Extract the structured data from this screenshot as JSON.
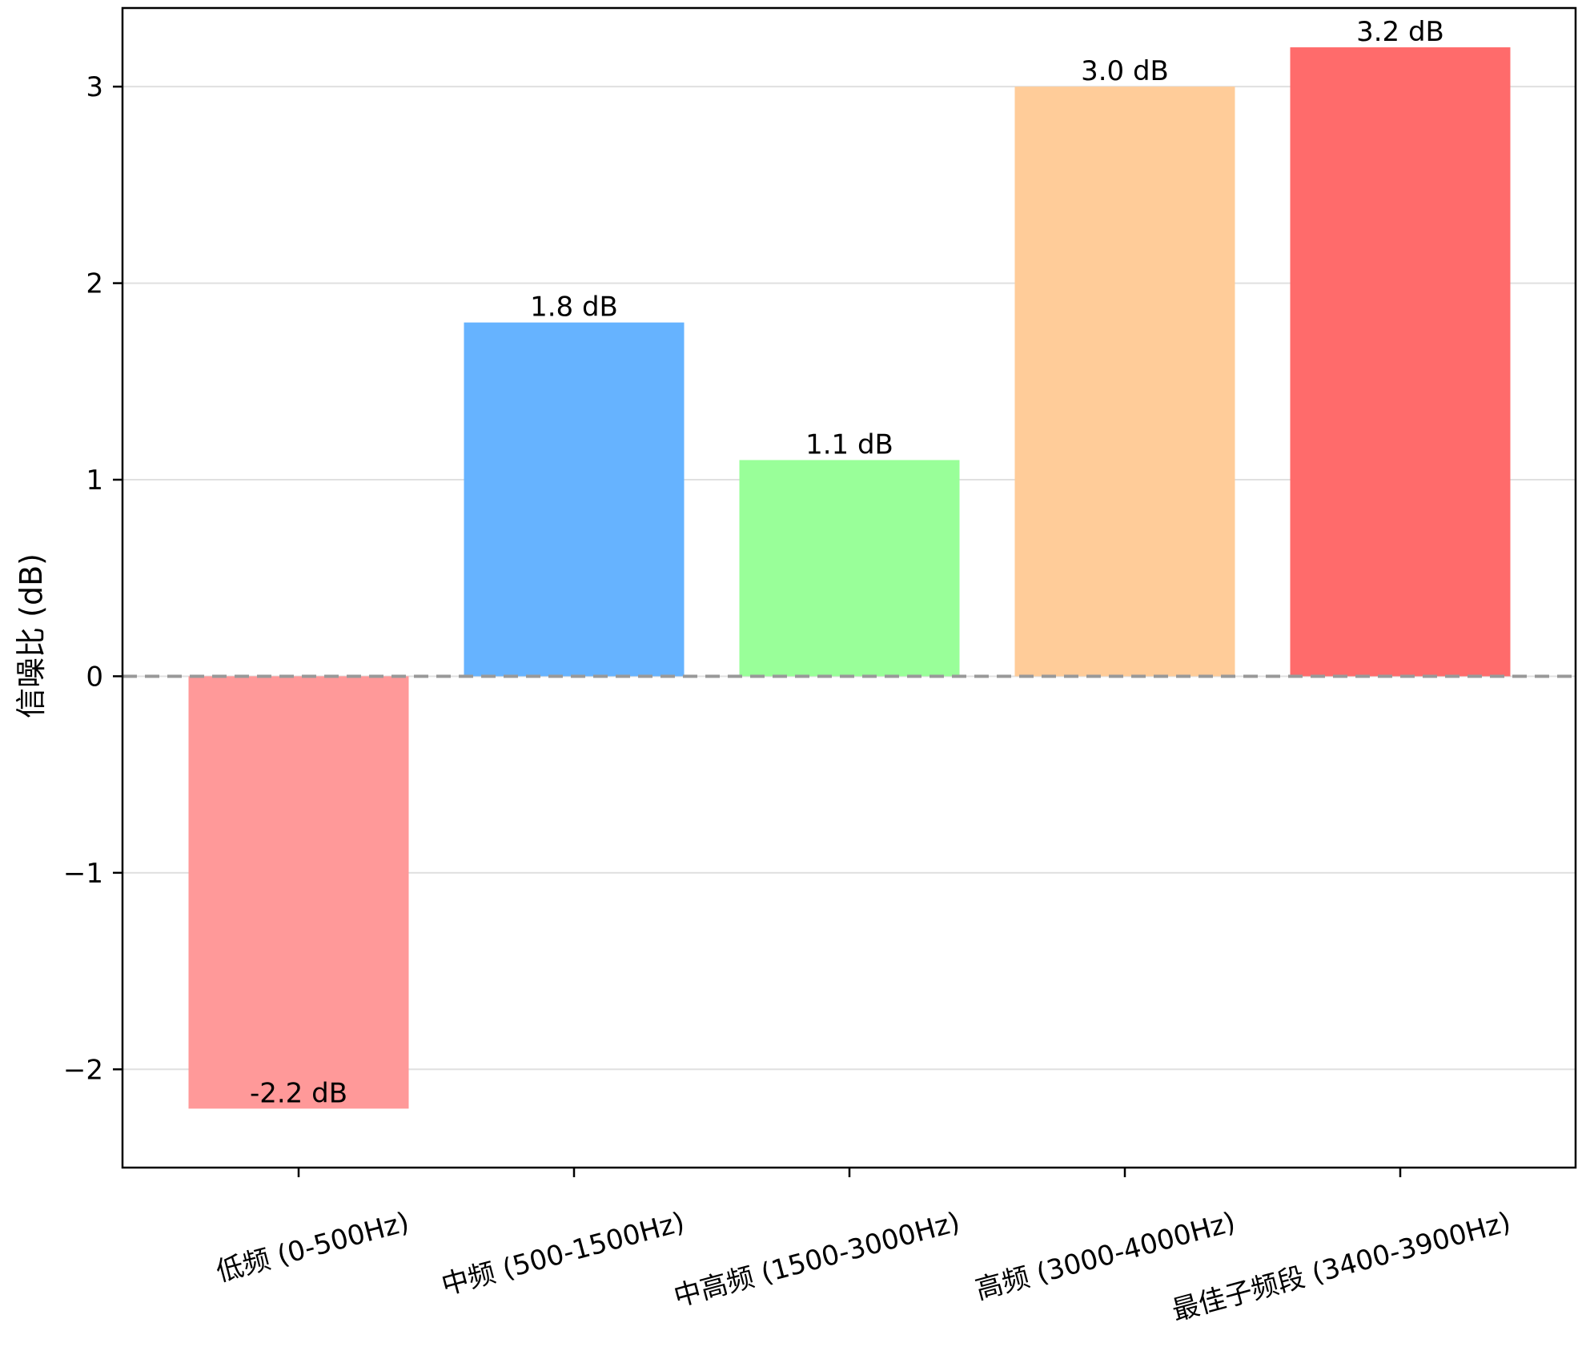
{
  "chart_data": {
    "type": "bar",
    "title": "",
    "xlabel": "",
    "ylabel": "信噪比 (dB)",
    "categories": [
      "低频 (0-500Hz)",
      "中频 (500-1500Hz)",
      "中高频 (1500-3000Hz)",
      "高频 (3000-4000Hz)",
      "最佳子频段 (3400-3900Hz)"
    ],
    "values": [
      -2.2,
      1.8,
      1.1,
      3.0,
      3.2
    ],
    "value_labels": [
      "-2.2 dB",
      "1.8 dB",
      "1.1 dB",
      "3.0 dB",
      "3.2 dB"
    ],
    "colors": [
      "#ff9999",
      "#66b3ff",
      "#99ff99",
      "#ffcc99",
      "#ff6b6b"
    ],
    "ylim": [
      -2.5,
      3.4
    ],
    "yticks": [
      -2,
      -1,
      0,
      1,
      2,
      3
    ],
    "ytick_labels": [
      "−2",
      "−1",
      "0",
      "1",
      "2",
      "3"
    ],
    "grid": "y",
    "reference_line": {
      "y": 0,
      "style": "dashed",
      "color": "#999999"
    }
  }
}
